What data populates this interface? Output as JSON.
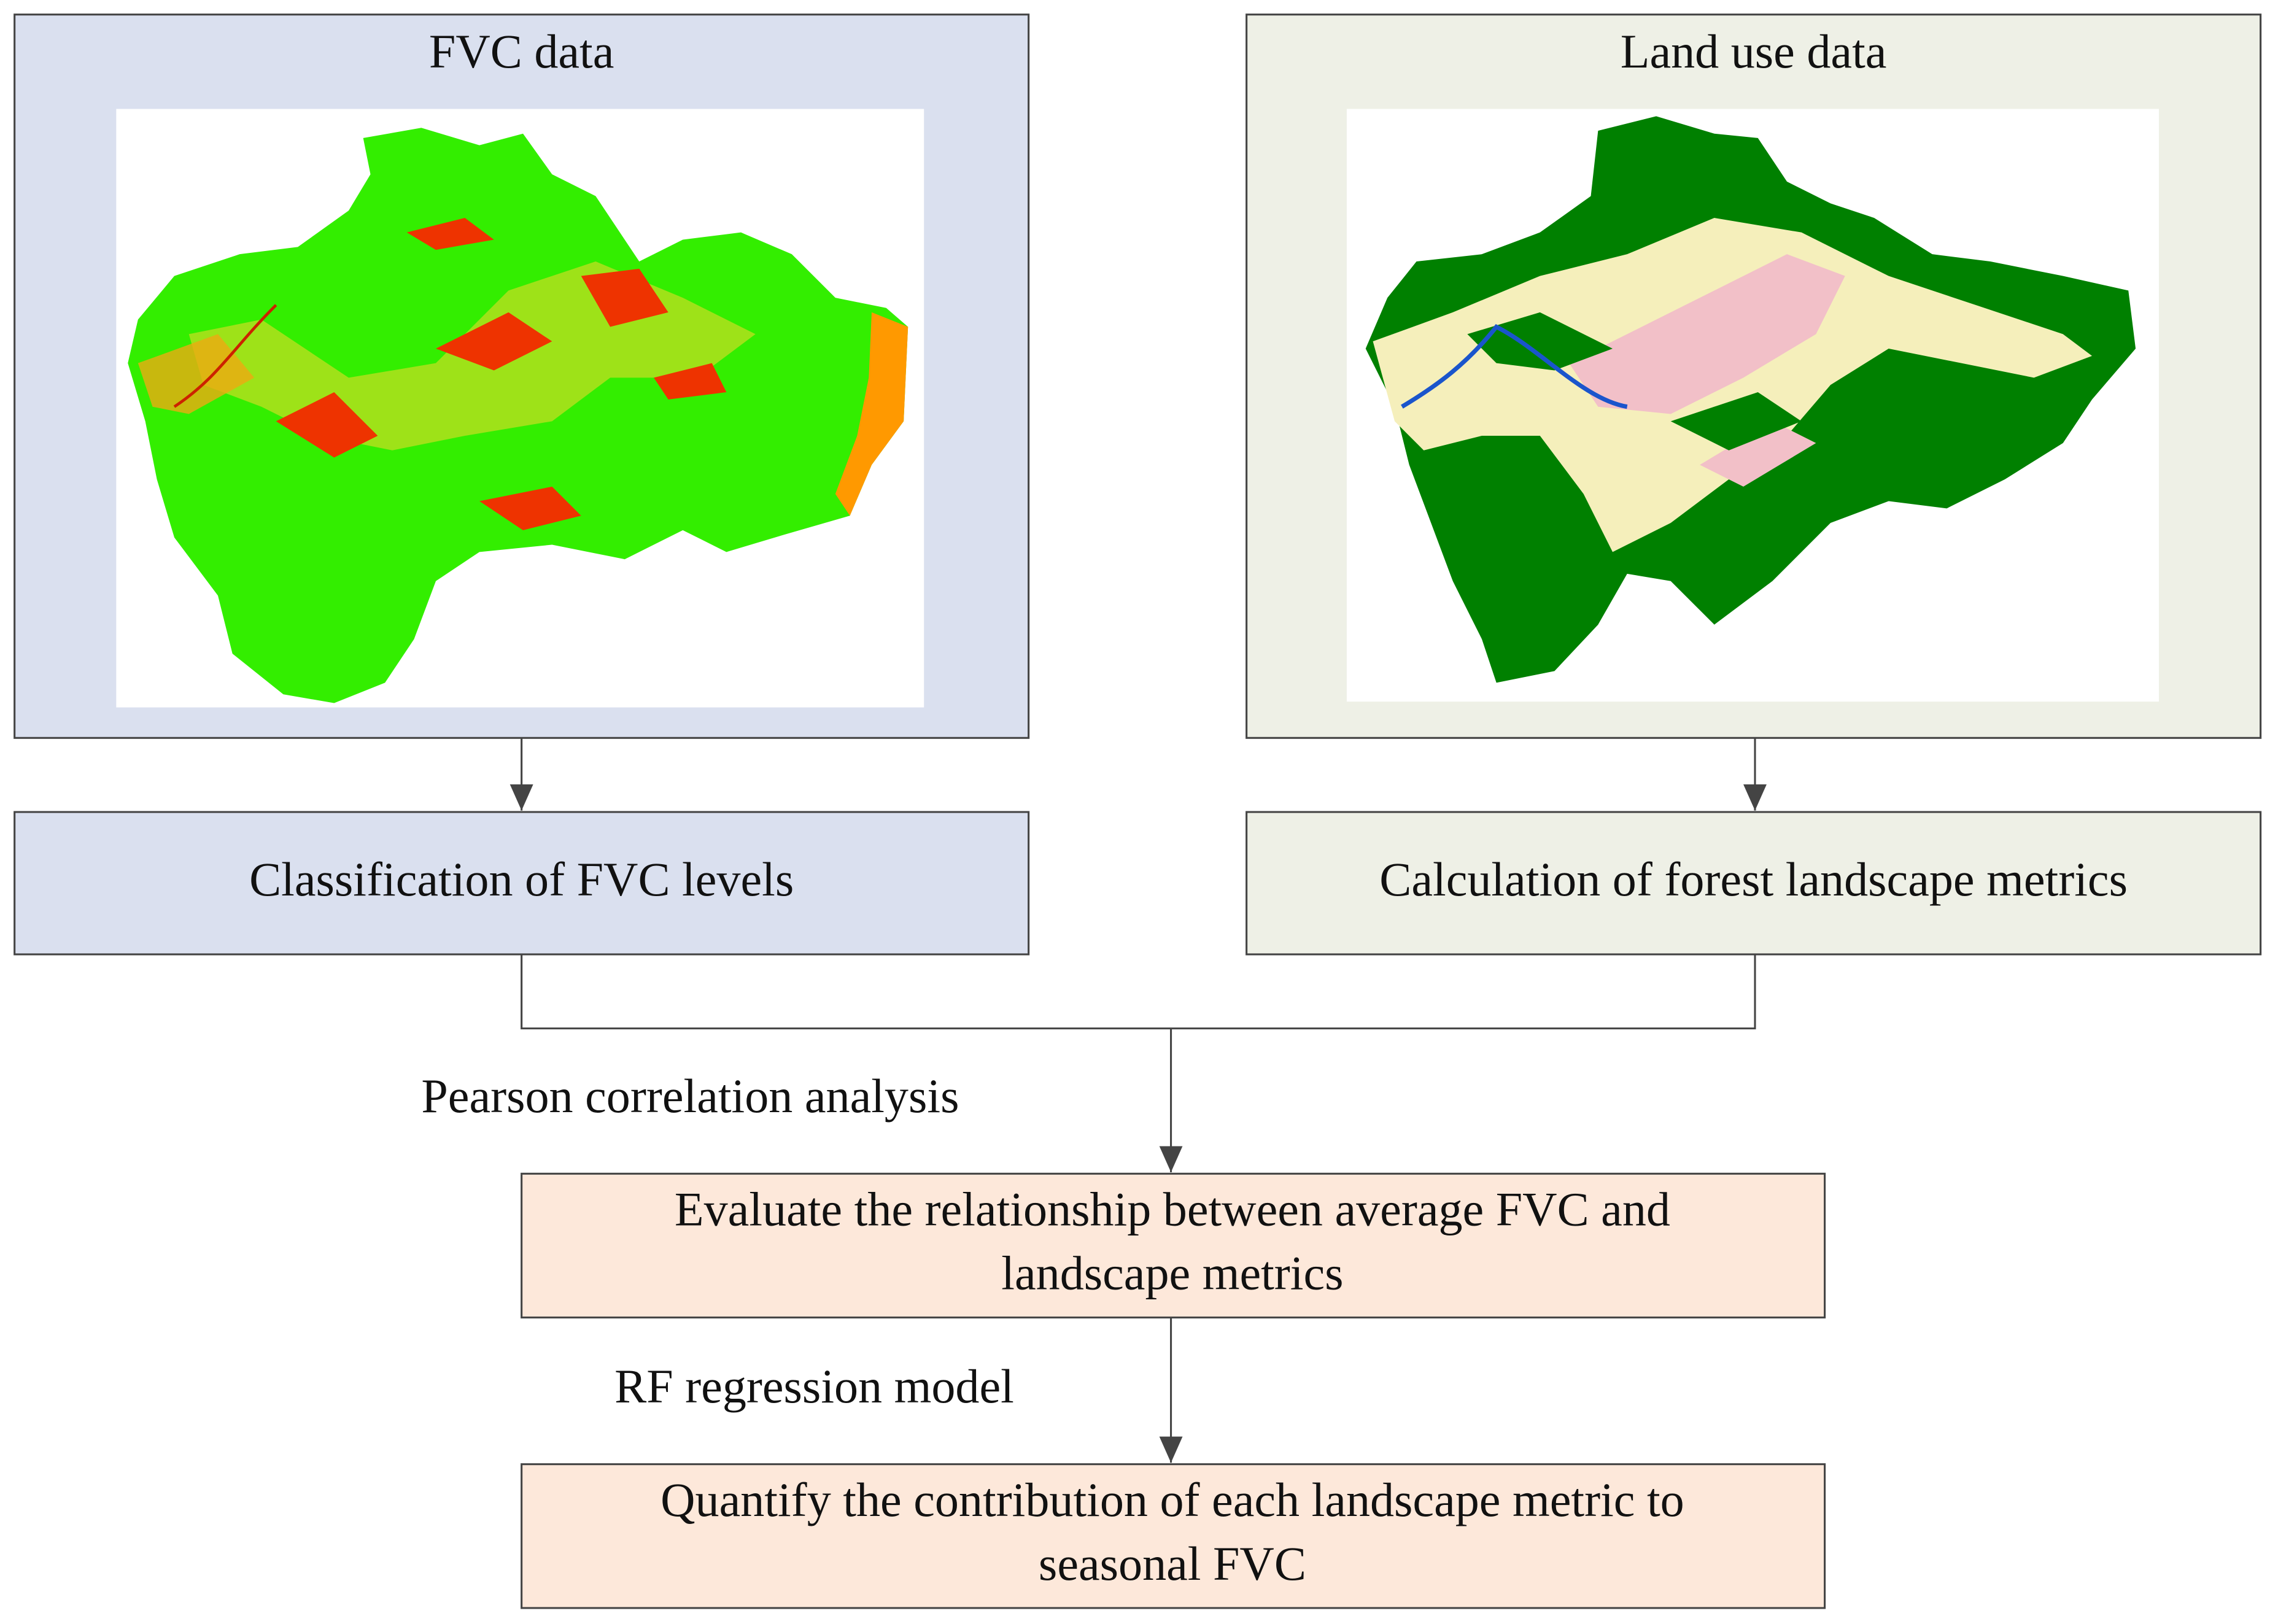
{
  "nodes": [
    {
      "label": "FVC data"
    },
    {
      "label": "Land use data"
    },
    {
      "label": "Classification of FVC levels"
    },
    {
      "label": "Calculation of forest landscape metrics"
    },
    {
      "lines": [
        "Evaluate the relationship between average FVC and",
        "landscape metrics"
      ]
    },
    {
      "lines": [
        "Quantify the contribution of each landscape metric to",
        "seasonal FVC"
      ]
    }
  ],
  "edges": [
    {
      "label": "Pearson correlation analysis"
    },
    {
      "label": "RF regression model"
    }
  ]
}
